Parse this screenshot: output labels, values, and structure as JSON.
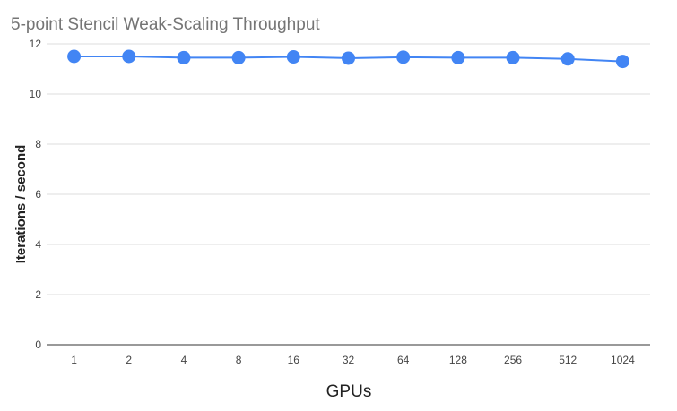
{
  "chart_data": {
    "type": "line",
    "title": "5-point Stencil Weak-Scaling Throughput",
    "xlabel": "GPUs",
    "ylabel": "Iterations / second",
    "categories": [
      "1",
      "2",
      "4",
      "8",
      "16",
      "32",
      "64",
      "128",
      "256",
      "512",
      "1024"
    ],
    "series": [
      {
        "values": [
          11.5,
          11.5,
          11.45,
          11.45,
          11.48,
          11.43,
          11.47,
          11.45,
          11.45,
          11.4,
          11.3
        ],
        "color": "#4285f4"
      }
    ],
    "ylim": [
      0,
      12
    ],
    "y_ticks": [
      "0",
      "2",
      "4",
      "6",
      "8",
      "10",
      "12"
    ],
    "grid": true,
    "legend": "none"
  }
}
